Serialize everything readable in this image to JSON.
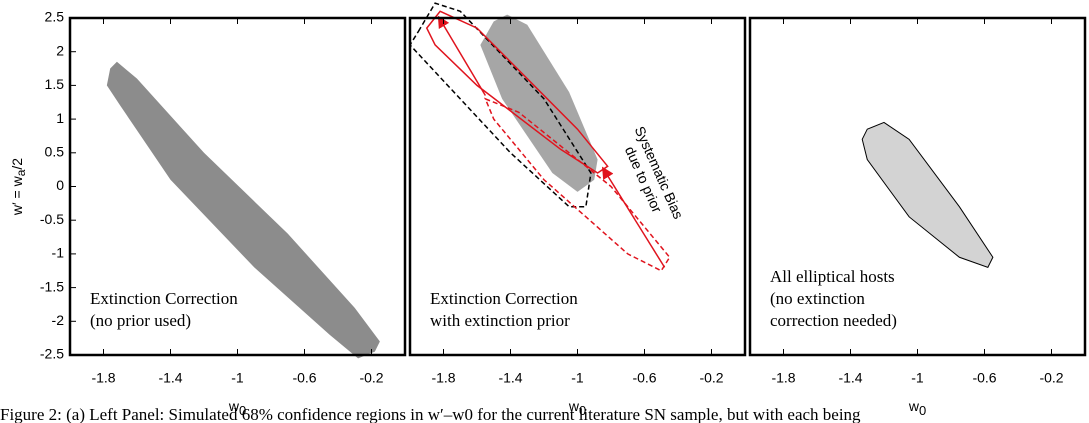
{
  "chart_data": [
    {
      "type": "contour",
      "xlim": [
        -2,
        0
      ],
      "ylim": [
        -2.5,
        2.5
      ],
      "xticks": [
        -1.8,
        -1.4,
        -1,
        -0.6,
        -0.2
      ],
      "yticks": [
        -2.5,
        -2,
        -1.5,
        -1,
        -0.5,
        0,
        0.5,
        1,
        1.5,
        2,
        2.5
      ],
      "xlabel": [
        "w",
        "0"
      ],
      "ylabel": [
        "w′ = w",
        "a",
        "/2"
      ],
      "labels": [
        "Extinction Correction",
        "(no prior used)"
      ],
      "series": [
        {
          "color": "#8c8c8c",
          "fill": "#8c8c8c",
          "dash": false,
          "x": [
            -1.76,
            -1.72,
            -1.6,
            -1.2,
            -0.7,
            -0.3,
            -0.15,
            -0.18,
            -0.28,
            -0.45,
            -0.9,
            -1.4,
            -1.7,
            -1.78
          ],
          "y": [
            1.75,
            1.85,
            1.6,
            0.5,
            -0.7,
            -1.8,
            -2.3,
            -2.45,
            -2.55,
            -2.2,
            -1.2,
            0.1,
            1.2,
            1.5
          ]
        }
      ]
    },
    {
      "type": "contour",
      "xlim": [
        -2,
        0
      ],
      "ylim": [
        -2.5,
        2.5
      ],
      "xticks": [
        -1.8,
        -1.4,
        -1,
        -0.6,
        -0.2
      ],
      "xlabel": [
        "w",
        "0"
      ],
      "labels": [
        "Extinction Correction",
        "with extinction prior"
      ],
      "annotation": [
        "Systematic Bias",
        "due to prior"
      ],
      "series": [
        {
          "color": "#a6a6a6",
          "fill": "#a6a6a6",
          "dash": false,
          "x": [
            -1.5,
            -1.42,
            -1.3,
            -1.05,
            -0.88,
            -0.9,
            -1.0,
            -1.15,
            -1.45,
            -1.58
          ],
          "y": [
            2.45,
            2.55,
            2.4,
            1.4,
            0.4,
            0.1,
            -0.08,
            0.2,
            1.3,
            2.1
          ]
        },
        {
          "color": "#000000",
          "fill": "none",
          "dash": true,
          "x": [
            -1.95,
            -1.85,
            -1.7,
            -1.2,
            -0.92,
            -0.95,
            -1.05,
            -1.4,
            -1.85,
            -2.0
          ],
          "y": [
            2.3,
            2.72,
            2.6,
            1.3,
            0.2,
            -0.3,
            -0.3,
            0.5,
            1.7,
            2.1
          ]
        },
        {
          "color": "#e0141e",
          "fill": "none",
          "dash": false,
          "x": [
            -1.9,
            -1.82,
            -1.6,
            -1.0,
            -0.82,
            -0.88,
            -1.1,
            -1.6,
            -1.85
          ],
          "y": [
            2.35,
            2.6,
            2.35,
            0.85,
            0.3,
            0.2,
            0.55,
            1.5,
            2.1
          ]
        },
        {
          "color": "#e0141e",
          "fill": "none",
          "dash": true,
          "x": [
            -1.55,
            -1.35,
            -0.8,
            -0.45,
            -0.5,
            -0.7,
            -1.2,
            -1.5
          ],
          "y": [
            1.3,
            1.1,
            0,
            -1.05,
            -1.25,
            -1.0,
            0.1,
            1.0
          ]
        },
        {
          "color": "#e0141e",
          "fill": "none",
          "dash": false,
          "arrow": true,
          "x": [
            -0.48,
            -0.85
          ],
          "y": [
            -1.2,
            0.28
          ]
        },
        {
          "color": "#e0141e",
          "fill": "none",
          "dash": false,
          "arrow": true,
          "x": [
            -1.55,
            -1.83
          ],
          "y": [
            1.35,
            2.52
          ]
        }
      ]
    },
    {
      "type": "contour",
      "xlim": [
        -2,
        0
      ],
      "ylim": [
        -2.5,
        2.5
      ],
      "xticks": [
        -1.8,
        -1.4,
        -1,
        -0.6,
        -0.2
      ],
      "xlabel": [
        "w",
        "0"
      ],
      "labels": [
        "All elliptical hosts",
        "(no extinction",
        "correction needed)"
      ],
      "series": [
        {
          "color": "#000000",
          "fill": "#d3d3d3",
          "dash": false,
          "x": [
            -1.3,
            -1.2,
            -1.05,
            -0.75,
            -0.55,
            -0.58,
            -0.75,
            -1.05,
            -1.3,
            -1.33
          ],
          "y": [
            0.85,
            0.95,
            0.7,
            -0.3,
            -1.05,
            -1.2,
            -1.05,
            -0.45,
            0.4,
            0.7
          ]
        }
      ]
    }
  ],
  "caption": "Figure 2: (a) Left Panel: Simulated 68% confidence regions in w′–w0 for the current literature SN sample, but with each being"
}
